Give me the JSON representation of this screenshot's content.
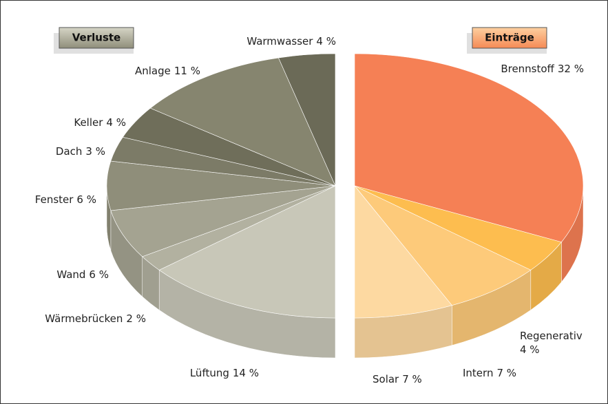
{
  "chart_data": {
    "type": "pie",
    "groups": [
      {
        "name": "Verluste",
        "color": "#a5a48f",
        "categories": [
          "Lüftung",
          "Wärmebrücken",
          "Wand",
          "Fenster",
          "Dach",
          "Keller",
          "Anlage",
          "Warmwasser"
        ],
        "values": [
          14,
          2,
          6,
          6,
          3,
          4,
          11,
          4
        ],
        "value_labels": [
          "14 %",
          "2 %",
          "6 %",
          "6 %",
          "3 %",
          "4 %",
          "11 %",
          "4 %"
        ],
        "colors": [
          "#c8c7b8",
          "#b2b1a0",
          "#a4a391",
          "#8f8e7a",
          "#7c7b67",
          "#6f6e5a",
          "#86856f",
          "#6b6a57"
        ]
      },
      {
        "name": "Einträge",
        "color": "#f9a36c",
        "categories": [
          "Brennstoff",
          "Regenerativ",
          "Intern",
          "Solar"
        ],
        "values": [
          32,
          4,
          7,
          7
        ],
        "value_labels": [
          "32 %",
          "4 %",
          "7 %",
          "7 %"
        ],
        "colors": [
          "#f58055",
          "#fdbd4f",
          "#fdca7a",
          "#fdd9a1"
        ]
      }
    ]
  }
}
